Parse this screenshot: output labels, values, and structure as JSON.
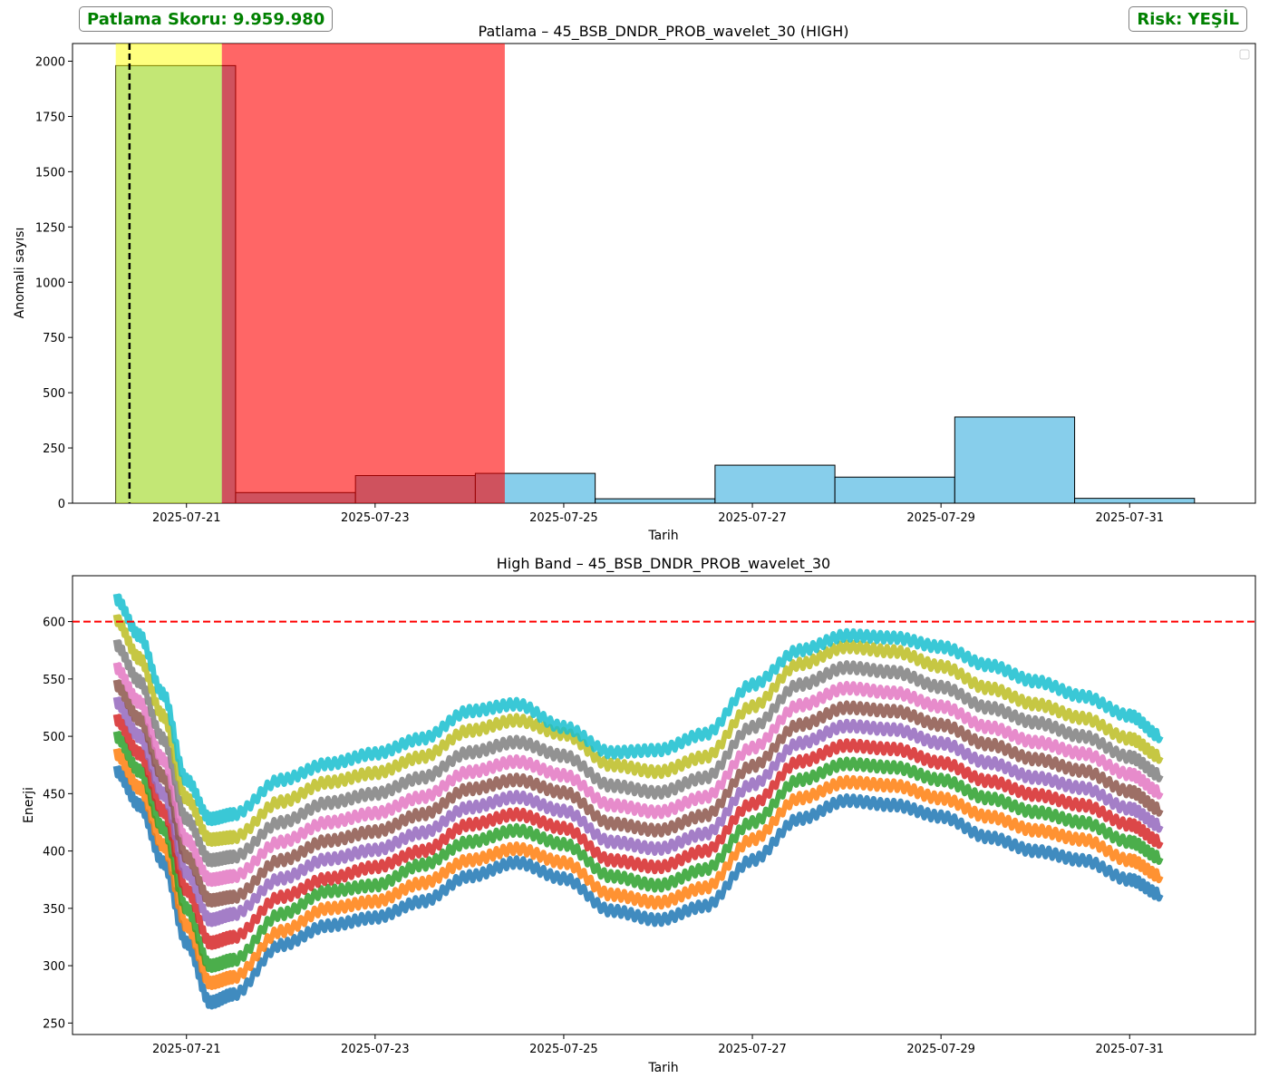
{
  "header": {
    "score_text": "Patlama Skoru: 9.959.980",
    "risk_text": "Risk: YEŞİL",
    "text_color": "#008000"
  },
  "chart_data": [
    {
      "type": "bar",
      "title": "Patlama – 45_BSB_DNDR_PROB_wavelet_30 (HIGH)",
      "xlabel": "Tarih",
      "ylabel": "Anomali sayısı",
      "x_ticks": [
        "2025-07-21",
        "2025-07-23",
        "2025-07-25",
        "2025-07-27",
        "2025-07-29",
        "2025-07-31"
      ],
      "y_ticks": [
        0,
        250,
        500,
        750,
        1000,
        1250,
        1500,
        1750,
        2000
      ],
      "ylim": [
        0,
        2080
      ],
      "xlim": [
        "2025-07-19 19:00",
        "2025-08-01 08:00"
      ],
      "bins": [
        {
          "start": "2025-07-20 06:00",
          "end": "2025-07-21 12:30",
          "value": 1980
        },
        {
          "start": "2025-07-21 12:30",
          "end": "2025-07-22 19:00",
          "value": 48
        },
        {
          "start": "2025-07-22 19:00",
          "end": "2025-07-24 01:30",
          "value": 125
        },
        {
          "start": "2025-07-24 01:30",
          "end": "2025-07-25 08:00",
          "value": 135
        },
        {
          "start": "2025-07-25 08:00",
          "end": "2025-07-26 14:30",
          "value": 20
        },
        {
          "start": "2025-07-26 14:30",
          "end": "2025-07-27 21:00",
          "value": 172
        },
        {
          "start": "2025-07-27 21:00",
          "end": "2025-07-29 03:30",
          "value": 118
        },
        {
          "start": "2025-07-29 03:30",
          "end": "2025-07-30 10:00",
          "value": 390
        },
        {
          "start": "2025-07-30 10:00",
          "end": "2025-07-31 16:30",
          "value": 22
        }
      ],
      "bar_color": "#87ceeb",
      "shaded_spans": [
        {
          "start": "2025-07-20 06:00",
          "end": "2025-07-21 09:00",
          "color": "#ffff00",
          "alpha": 0.5
        },
        {
          "start": "2025-07-21 09:00",
          "end": "2025-07-24 09:00",
          "color": "#ff0000",
          "alpha": 0.6
        }
      ],
      "vline": {
        "x": "2025-07-20 09:30",
        "style": "dashed",
        "color": "#000000"
      },
      "legend": {
        "placement": "upper right",
        "entries": []
      },
      "grid": false
    },
    {
      "type": "line",
      "title": "High Band – 45_BSB_DNDR_PROB_wavelet_30",
      "xlabel": "Tarih",
      "ylabel": "Enerji",
      "x_ticks": [
        "2025-07-21",
        "2025-07-23",
        "2025-07-25",
        "2025-07-27",
        "2025-07-29",
        "2025-07-31"
      ],
      "y_ticks": [
        250,
        300,
        350,
        400,
        450,
        500,
        550,
        600
      ],
      "ylim": [
        240,
        640
      ],
      "xlim": [
        "2025-07-19 19:00",
        "2025-08-01 08:00"
      ],
      "threshold": {
        "y": 600,
        "style": "dashed",
        "color": "#ff0000"
      },
      "x": [
        "2025-07-20 06:00",
        "2025-07-20 12:00",
        "2025-07-20 18:00",
        "2025-07-21 00:00",
        "2025-07-21 06:00",
        "2025-07-21 12:00",
        "2025-07-22 00:00",
        "2025-07-22 12:00",
        "2025-07-23 00:00",
        "2025-07-23 12:00",
        "2025-07-24 00:00",
        "2025-07-24 12:00",
        "2025-07-25 00:00",
        "2025-07-25 12:00",
        "2025-07-26 00:00",
        "2025-07-26 12:00",
        "2025-07-27 00:00",
        "2025-07-27 12:00",
        "2025-07-28 00:00",
        "2025-07-28 12:00",
        "2025-07-29 00:00",
        "2025-07-29 12:00",
        "2025-07-30 00:00",
        "2025-07-30 12:00",
        "2025-07-31 00:00",
        "2025-07-31 08:00"
      ],
      "series": [
        {
          "color": "#1f77b4",
          "values": [
            470,
            440,
            390,
            320,
            268,
            275,
            318,
            335,
            342,
            356,
            378,
            390,
            376,
            348,
            340,
            352,
            392,
            428,
            444,
            440,
            430,
            412,
            400,
            392,
            375,
            362
          ]
        },
        {
          "color": "#ff7f0e",
          "values": [
            485,
            455,
            405,
            335,
            285,
            290,
            330,
            350,
            356,
            372,
            392,
            402,
            390,
            362,
            355,
            368,
            410,
            446,
            460,
            457,
            446,
            430,
            418,
            410,
            392,
            378
          ]
        },
        {
          "color": "#2ca02c",
          "values": [
            500,
            470,
            420,
            350,
            300,
            305,
            345,
            365,
            370,
            388,
            408,
            418,
            406,
            378,
            370,
            384,
            425,
            462,
            476,
            473,
            462,
            446,
            434,
            425,
            408,
            394
          ]
        },
        {
          "color": "#d62728",
          "values": [
            515,
            485,
            435,
            366,
            320,
            325,
            360,
            376,
            386,
            400,
            423,
            432,
            420,
            392,
            386,
            400,
            441,
            478,
            492,
            489,
            477,
            461,
            449,
            440,
            423,
            408
          ]
        },
        {
          "color": "#9467bd",
          "values": [
            530,
            500,
            450,
            381,
            340,
            345,
            376,
            393,
            401,
            416,
            438,
            447,
            435,
            408,
            402,
            415,
            458,
            494,
            509,
            506,
            494,
            477,
            464,
            455,
            437,
            422
          ]
        },
        {
          "color": "#8c564b",
          "values": [
            545,
            515,
            465,
            395,
            357,
            360,
            392,
            409,
            417,
            432,
            454,
            462,
            451,
            424,
            418,
            431,
            474,
            510,
            525,
            522,
            510,
            493,
            480,
            470,
            452,
            436
          ]
        },
        {
          "color": "#e377c2",
          "values": [
            560,
            530,
            480,
            410,
            375,
            378,
            408,
            425,
            433,
            447,
            469,
            478,
            466,
            440,
            434,
            447,
            490,
            527,
            542,
            538,
            526,
            508,
            495,
            485,
            467,
            451
          ]
        },
        {
          "color": "#7f7f7f",
          "values": [
            580,
            548,
            498,
            428,
            392,
            395,
            425,
            442,
            450,
            464,
            486,
            495,
            483,
            457,
            451,
            464,
            508,
            545,
            560,
            556,
            543,
            525,
            512,
            500,
            482,
            466
          ]
        },
        {
          "color": "#bcbd22",
          "values": [
            602,
            568,
            518,
            446,
            410,
            412,
            443,
            460,
            468,
            482,
            505,
            514,
            502,
            475,
            469,
            482,
            526,
            563,
            578,
            574,
            561,
            542,
            528,
            516,
            498,
            482
          ]
        },
        {
          "color": "#17becf",
          "values": [
            620,
            588,
            537,
            462,
            428,
            432,
            462,
            476,
            485,
            498,
            522,
            528,
            508,
            486,
            488,
            502,
            545,
            575,
            588,
            586,
            578,
            562,
            548,
            535,
            518,
            500
          ]
        }
      ],
      "grid": false
    }
  ]
}
